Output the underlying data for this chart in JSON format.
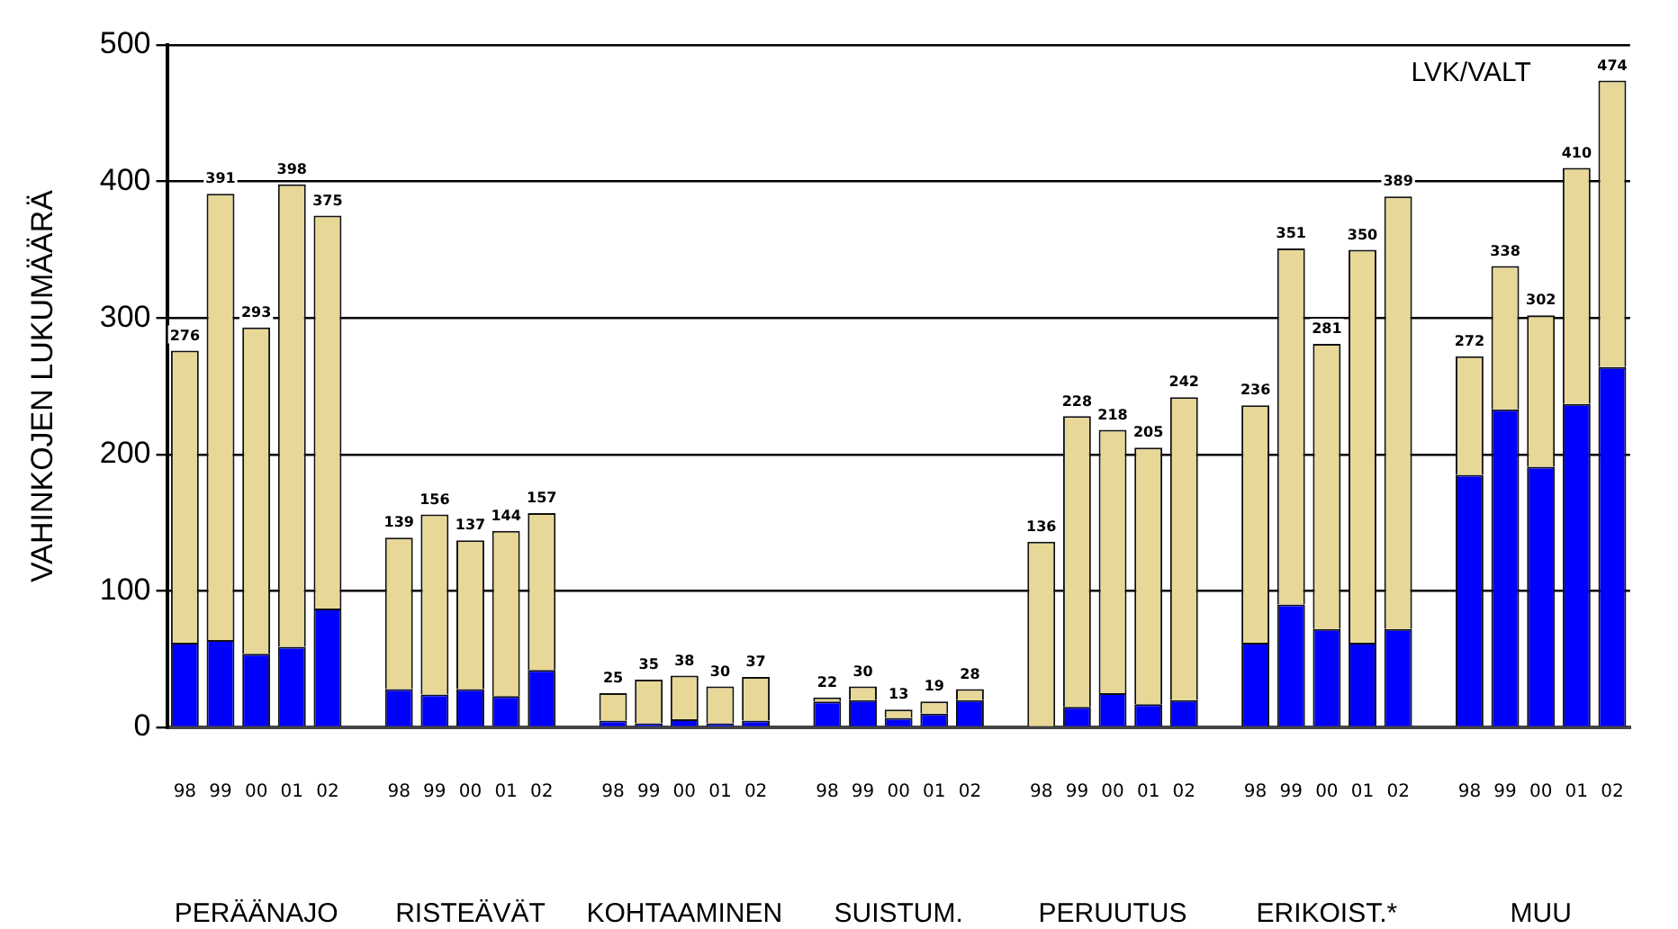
{
  "chart_data": {
    "type": "bar",
    "stacked": true,
    "ylabel": "VAHINKOJEN LUKUMÄÄRÄ",
    "categories": [
      "98",
      "99",
      "00",
      "01",
      "02",
      null,
      "98",
      "99",
      "00",
      "01",
      "02",
      null,
      "98",
      "99",
      "00",
      "01",
      "02",
      null,
      "98",
      "99",
      "00",
      "01",
      "02",
      null,
      "98",
      "99",
      "00",
      "01",
      "02",
      null,
      "98",
      "99",
      "00",
      "01",
      "02",
      null,
      "98",
      "99",
      "00",
      "01",
      "02"
    ],
    "series": [
      {
        "color": "#0000ff",
        "values": [
          62,
          64,
          54,
          59,
          87,
          null,
          28,
          24,
          28,
          23,
          42,
          null,
          5,
          3,
          6,
          3,
          5,
          null,
          19,
          20,
          7,
          10,
          20,
          null,
          null,
          15,
          25,
          17,
          20,
          null,
          62,
          90,
          72,
          62,
          72,
          null,
          185,
          233,
          191,
          237,
          264
        ]
      },
      {
        "color": "#e8d898",
        "values": [
          214,
          327,
          239,
          339,
          288,
          null,
          111,
          132,
          109,
          121,
          115,
          null,
          20,
          32,
          32,
          27,
          32,
          null,
          3,
          10,
          6,
          9,
          8,
          null,
          136,
          213,
          193,
          188,
          222,
          null,
          174,
          261,
          209,
          288,
          317,
          null,
          87,
          105,
          111,
          173,
          210
        ]
      }
    ],
    "totals": [
      "276",
      "391",
      "293",
      "398",
      "375",
      null,
      "139",
      "156",
      "137",
      "144",
      "157",
      null,
      "25",
      "35",
      "38",
      "30",
      "37",
      null,
      "22",
      "30",
      "13",
      "19",
      "28",
      null,
      "136",
      "228",
      "218",
      "205",
      "242",
      null,
      "236",
      "351",
      "281",
      "350",
      "389",
      null,
      "272",
      "338",
      "302",
      "410",
      "474"
    ],
    "annotations": [
      "PERÄÄNAJO",
      "RISTEÄVÄT",
      "KOHTAAMINEN",
      "SUISTUM.",
      "PERUUTUS",
      "ERIKOIST.*",
      "MUU",
      "LVK/VALT"
    ],
    "ylim": [
      0,
      500
    ],
    "yticks": [
      0,
      100,
      200,
      300,
      400,
      500
    ],
    "grid": "y",
    "legend": false
  }
}
